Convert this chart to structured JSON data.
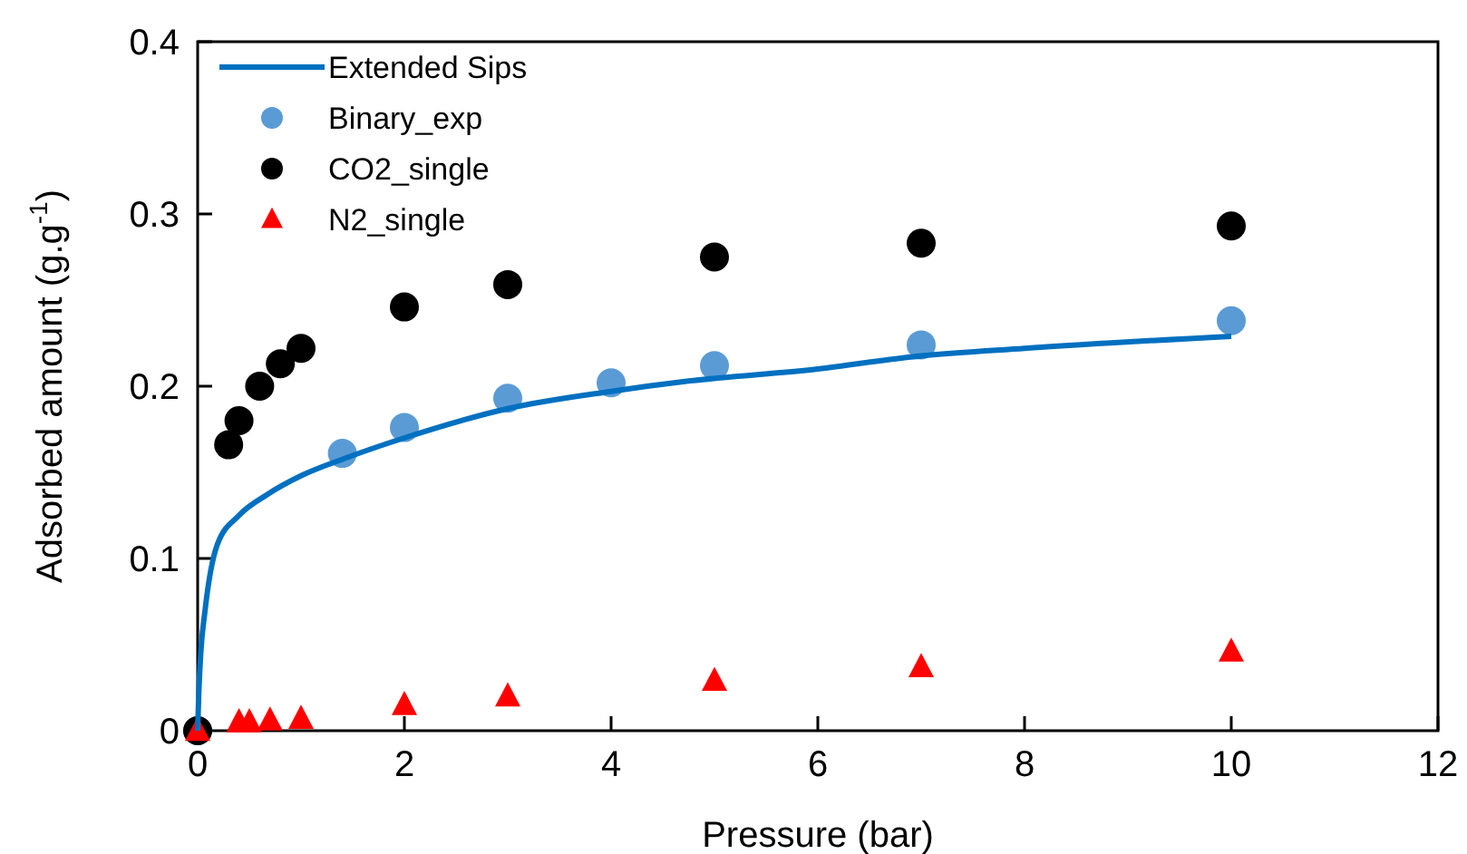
{
  "chart_data": {
    "type": "scatter",
    "xlabel": "Pressure (bar)",
    "ylabel": "Adsorbed amount (g.g$^{-1}$)",
    "xlim": [
      0,
      12
    ],
    "ylim": [
      0,
      0.4
    ],
    "xticks": [
      0,
      2,
      4,
      6,
      8,
      10,
      12
    ],
    "yticks": [
      0,
      0.1,
      0.2,
      0.3,
      0.4
    ],
    "grid": false,
    "legend": "top left",
    "series": [
      {
        "name": "Extended Sips",
        "type": "line",
        "color": "#0070c0",
        "line_style": "solid",
        "marker": "none",
        "x": [
          0,
          0.01,
          0.03,
          0.07,
          0.19,
          0.4,
          0.67,
          1.0,
          1.42,
          2,
          3,
          4,
          4.75,
          6,
          6.9,
          8,
          10
        ],
        "values": [
          0,
          0.02,
          0.045,
          0.069,
          0.108,
          0.125,
          0.137,
          0.148,
          0.158,
          0.17,
          0.187,
          0.197,
          0.203,
          0.21,
          0.217,
          0.222,
          0.229
        ]
      },
      {
        "name": "Binary_exp",
        "color": "#5b9bd5",
        "marker": "circle",
        "x": [
          0,
          1.4,
          2,
          3,
          4,
          5,
          7,
          10
        ],
        "values": [
          0,
          0.161,
          0.176,
          0.193,
          0.202,
          0.212,
          0.224,
          0.238
        ]
      },
      {
        "name": "CO2_single",
        "color": "#000000",
        "marker": "circle",
        "x": [
          0,
          0.3,
          0.4,
          0.6,
          0.8,
          1,
          2,
          3,
          5,
          7,
          10
        ],
        "values": [
          0,
          0.166,
          0.18,
          0.2,
          0.213,
          0.222,
          0.246,
          0.259,
          0.275,
          0.283,
          0.293
        ]
      },
      {
        "name": "N2_single",
        "color": "#ff0000",
        "marker": "triangle",
        "x": [
          0,
          0.4,
          0.5,
          0.7,
          1,
          2,
          3,
          5,
          7,
          10
        ],
        "values": [
          0,
          0.005,
          0.005,
          0.006,
          0.007,
          0.015,
          0.02,
          0.029,
          0.037,
          0.046
        ]
      }
    ]
  }
}
